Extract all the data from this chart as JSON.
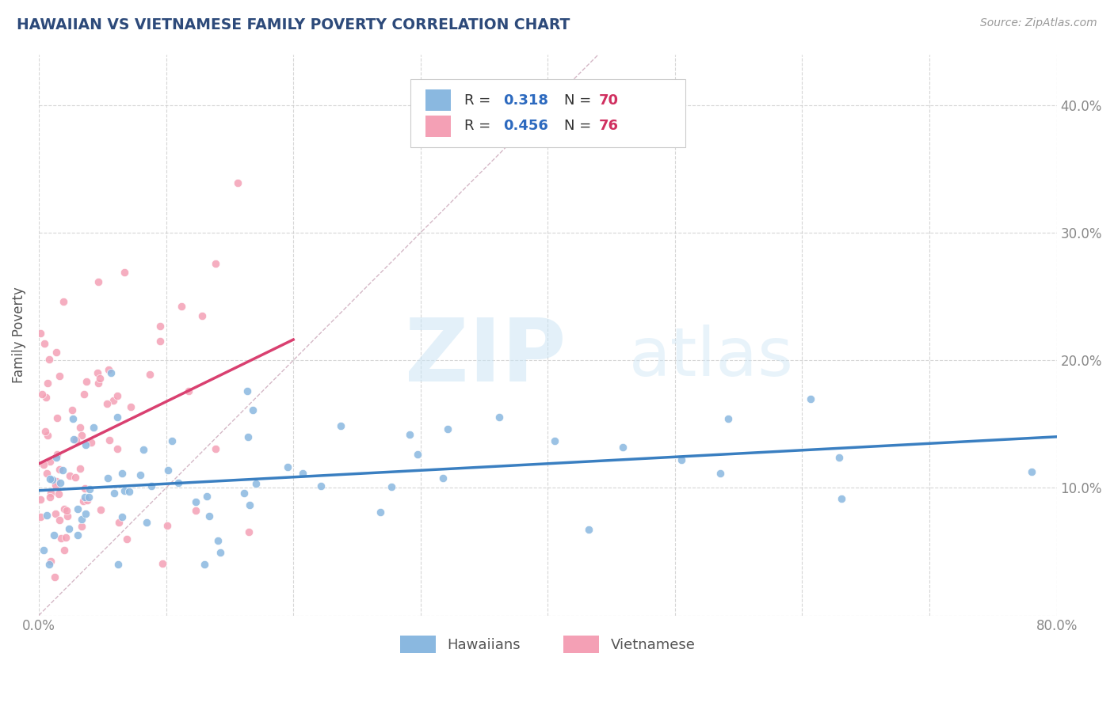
{
  "title": "HAWAIIAN VS VIETNAMESE FAMILY POVERTY CORRELATION CHART",
  "source_text": "Source: ZipAtlas.com",
  "ylabel": "Family Poverty",
  "xlim": [
    0.0,
    0.8
  ],
  "ylim": [
    0.0,
    0.44
  ],
  "xticks": [
    0.0,
    0.1,
    0.2,
    0.3,
    0.4,
    0.5,
    0.6,
    0.7,
    0.8
  ],
  "xticklabels": [
    "0.0%",
    "",
    "",
    "",
    "",
    "",
    "",
    "",
    "80.0%"
  ],
  "yticks": [
    0.0,
    0.1,
    0.2,
    0.3,
    0.4
  ],
  "ytick_labels_right": [
    "",
    "10.0%",
    "20.0%",
    "30.0%",
    "40.0%"
  ],
  "hawaiians_label": "Hawaiians",
  "vietnamese_label": "Vietnamese",
  "hawaiians_color": "#8ab8e0",
  "vietnamese_color": "#f4a0b5",
  "hawaiians_line_color": "#3a7fc1",
  "vietnamese_line_color": "#d94070",
  "diagonal_color": "#d0b0c0",
  "watermark_zip": "ZIP",
  "watermark_atlas": "atlas",
  "hawaiians_R": 0.318,
  "hawaiians_N": 70,
  "vietnamese_R": 0.456,
  "vietnamese_N": 76,
  "seed": 42,
  "title_color": "#2d4a7a",
  "axis_label_color": "#555555",
  "tick_color": "#888888",
  "grid_color": "#cccccc",
  "legend_r_color": "#2d6abf",
  "legend_n_color": "#d03060",
  "background_color": "#ffffff"
}
